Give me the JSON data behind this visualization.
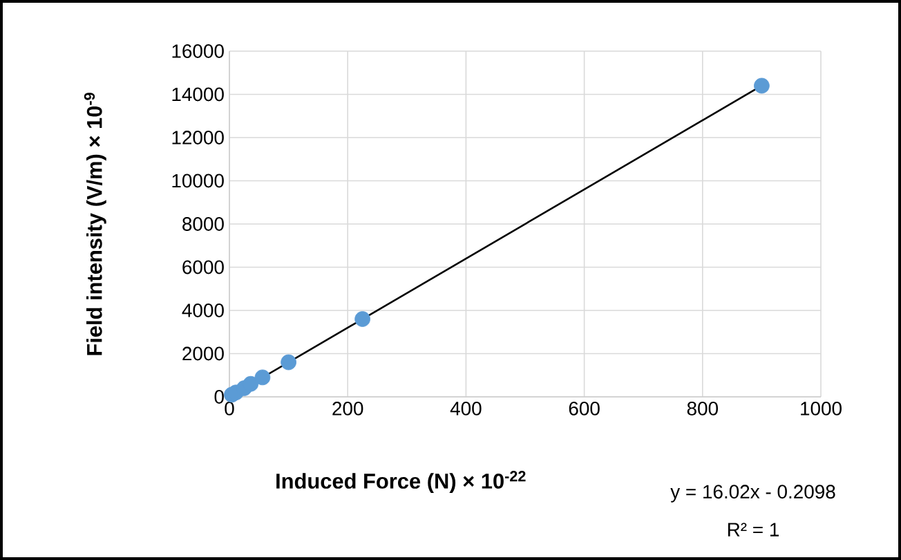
{
  "chart_data": {
    "type": "scatter",
    "xlabel": "Induced Force (N) × 10$^{-22}$",
    "ylabel": "Field intensity (V/m) × 10$^{-9}$",
    "xlim": [
      0,
      1000
    ],
    "xticks": [
      0,
      200,
      400,
      600,
      800,
      1000
    ],
    "ylim": [
      0,
      16000
    ],
    "yticks": [
      0,
      2000,
      4000,
      6000,
      8000,
      10000,
      12000,
      14000,
      16000
    ],
    "grid": true,
    "marker": "circle",
    "series": [
      {
        "color": "#5b9bd5",
        "x": [
          4,
          11,
          25,
          36,
          56,
          100,
          225,
          900
        ],
        "values": [
          100,
          200,
          400,
          600,
          900,
          1600,
          3600,
          14400
        ]
      },
      {
        "type": "line",
        "marker": "none",
        "color": "#000000",
        "x": [
          0,
          900
        ],
        "values": [
          0,
          14400
        ]
      }
    ],
    "annotations": [
      "y = 16.02x - 0.2098",
      "R² = 1"
    ]
  }
}
